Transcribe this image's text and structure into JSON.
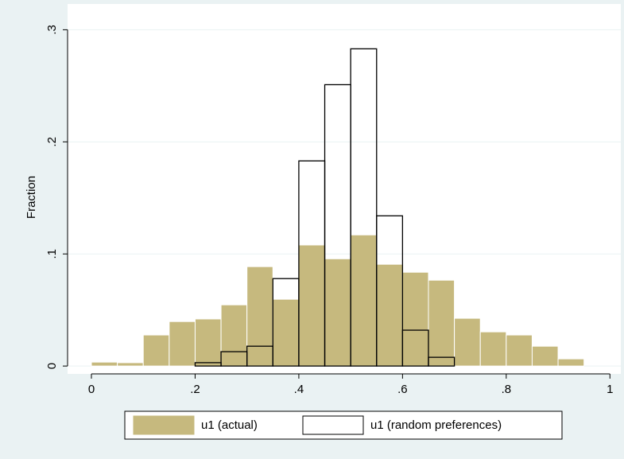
{
  "chart_data": {
    "type": "histogram",
    "y_label": "Fraction",
    "series": [
      {
        "name": "u1 (actual)",
        "color": "#c6b97e",
        "fill": true,
        "bins": [
          0,
          0.05,
          0.1,
          0.15,
          0.2,
          0.25,
          0.3,
          0.35,
          0.4,
          0.45,
          0.5,
          0.55,
          0.6,
          0.65,
          0.7,
          0.75,
          0.8,
          0.85,
          0.9,
          0.95
        ],
        "values": [
          0.0035,
          0.003,
          0.0277,
          0.0397,
          0.042,
          0.0546,
          0.0887,
          0.0596,
          0.108,
          0.0957,
          0.117,
          0.0908,
          0.0837,
          0.0766,
          0.0426,
          0.0305,
          0.0277,
          0.0177,
          0.0064
        ]
      },
      {
        "name": "u1 (random preferences)",
        "color": "#000000",
        "fill": false,
        "bins": [
          0.2,
          0.25,
          0.3,
          0.35,
          0.4,
          0.45,
          0.5,
          0.55,
          0.6,
          0.65,
          0.7
        ],
        "values": [
          0.003,
          0.0128,
          0.0177,
          0.078,
          0.183,
          0.251,
          0.283,
          0.134,
          0.032,
          0.0078
        ]
      }
    ],
    "xlim": [
      -0.046,
      1.021
    ],
    "ylim": [
      -0.007,
      0.323
    ],
    "xticks": [
      0,
      {
        "value": 0.2,
        "label": ".2"
      },
      {
        "value": 0.4,
        "label": ".4"
      },
      {
        "value": 0.6,
        "label": ".6"
      },
      {
        "value": 0.8,
        "label": ".8"
      },
      1
    ],
    "yticks": [
      0,
      {
        "value": 0.1,
        "label": ".1"
      },
      {
        "value": 0.2,
        "label": ".2"
      },
      {
        "value": 0.3,
        "label": ".3"
      }
    ],
    "grid": true,
    "legend": "bottom"
  }
}
